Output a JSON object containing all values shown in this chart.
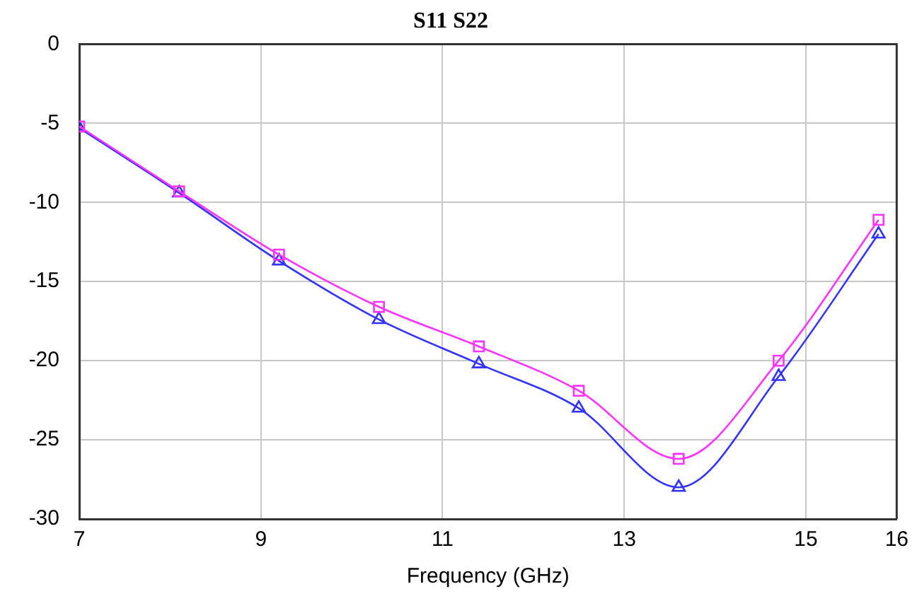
{
  "chart_data": {
    "type": "line",
    "title": "S11 S22",
    "xlabel": "Frequency (GHz)",
    "xlim": [
      7,
      16
    ],
    "xticks": [
      7,
      9,
      11,
      13,
      15,
      16
    ],
    "ylim": [
      -30,
      0
    ],
    "yticks": [
      -30,
      -25,
      -20,
      -15,
      -10,
      -5,
      0
    ],
    "grid": true,
    "legend": false,
    "x": [
      7,
      8.1,
      9.2,
      10.3,
      11.4,
      12.5,
      13.6,
      14.7,
      15.8
    ],
    "series": [
      {
        "color": "#ff33ff",
        "marker": "square",
        "values": [
          -5.2,
          -9.3,
          -13.3,
          -16.6,
          -19.1,
          -21.9,
          -26.2,
          -20,
          -11.1
        ]
      },
      {
        "color": "#3333ff",
        "marker": "triangle",
        "values": [
          -5.3,
          -9.4,
          -13.7,
          -17.4,
          -20.2,
          -23,
          -28,
          -21,
          -12
        ]
      }
    ]
  }
}
